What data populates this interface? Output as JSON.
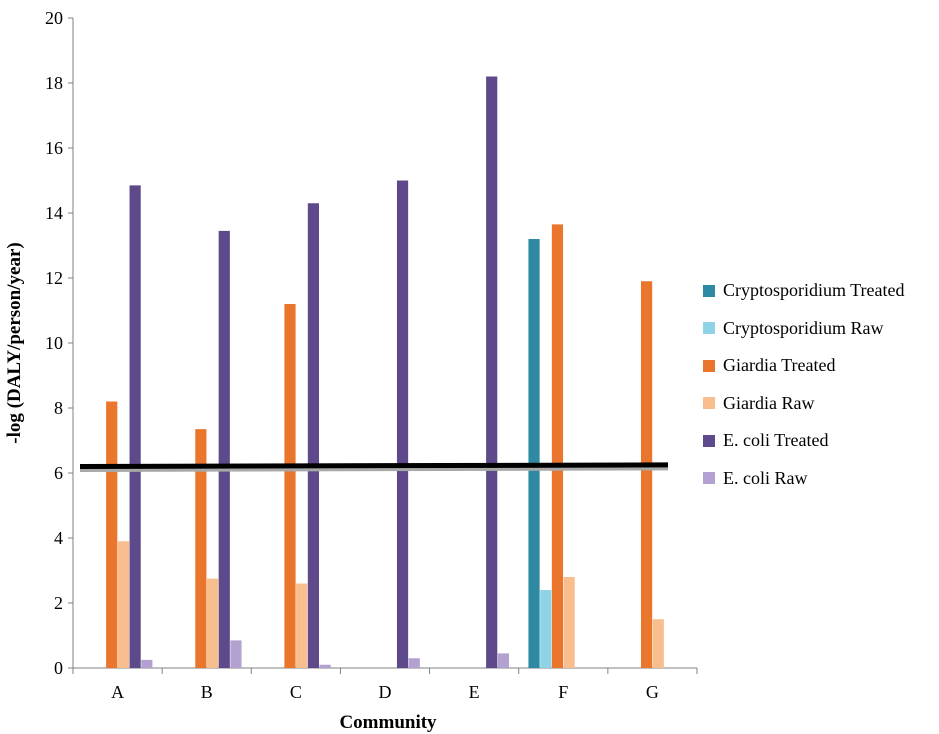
{
  "chart_data": {
    "type": "bar",
    "categories": [
      "A",
      "B",
      "C",
      "D",
      "E",
      "F",
      "G"
    ],
    "xlabel": "Community",
    "ylabel": "-log (DALY/person/year)",
    "ylim": [
      0,
      20
    ],
    "yticks": [
      "0",
      "2",
      "4",
      "6",
      "8",
      "10",
      "12",
      "14",
      "16",
      "18",
      "20"
    ],
    "grid": false,
    "legend_position": "right",
    "series": [
      {
        "name": "Cryptosporidium Treated",
        "color": "#2E8AA3",
        "values": [
          null,
          null,
          null,
          null,
          null,
          13.2,
          null
        ]
      },
      {
        "name": "Cryptosporidium Raw",
        "color": "#8FD3E6",
        "values": [
          null,
          null,
          null,
          null,
          null,
          2.4,
          null
        ]
      },
      {
        "name": "Giardia Treated",
        "color": "#E9762C",
        "values": [
          8.2,
          7.35,
          11.2,
          null,
          null,
          13.65,
          11.9
        ]
      },
      {
        "name": "Giardia Raw",
        "color": "#F9BE8E",
        "values": [
          3.9,
          2.75,
          2.6,
          null,
          null,
          2.8,
          1.5
        ]
      },
      {
        "name": "E. coli Treated",
        "color": "#5E4A8A",
        "values": [
          14.85,
          13.45,
          14.3,
          15.0,
          18.2,
          null,
          null
        ]
      },
      {
        "name": "E. coli Raw",
        "color": "#B3A2D1",
        "values": [
          0.25,
          0.85,
          0.1,
          0.3,
          0.45,
          null,
          null
        ]
      }
    ],
    "reference_line": {
      "start": 6.2,
      "end": 6.25,
      "color": "#000000"
    }
  }
}
